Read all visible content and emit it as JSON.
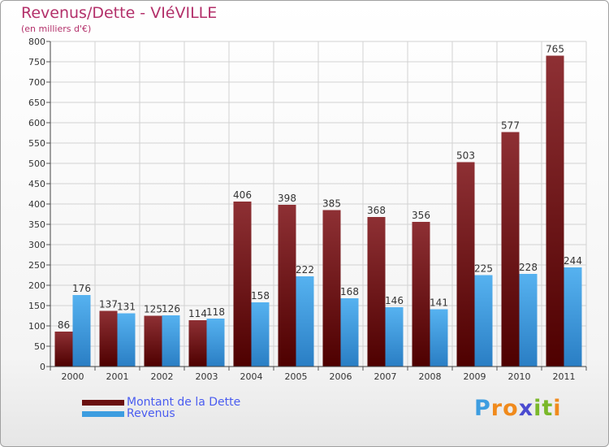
{
  "chart_data": {
    "type": "bar",
    "title": "Revenus/Dette - VIéVILLE",
    "subtitle": "(en milliers d'€)",
    "categories": [
      "2000",
      "2001",
      "2002",
      "2003",
      "2004",
      "2005",
      "2006",
      "2007",
      "2008",
      "2009",
      "2010",
      "2011"
    ],
    "series": [
      {
        "name": "Montant de la Dette",
        "color": "#7a1010",
        "values": [
          86,
          137,
          125,
          114,
          406,
          398,
          385,
          368,
          356,
          503,
          577,
          765
        ]
      },
      {
        "name": "Revenus",
        "color": "#3d9de0",
        "values": [
          176,
          131,
          126,
          118,
          158,
          222,
          168,
          146,
          141,
          225,
          228,
          244
        ]
      }
    ],
    "ylim": [
      0,
      800
    ],
    "yticks": [
      0,
      50,
      100,
      150,
      200,
      250,
      300,
      350,
      400,
      450,
      500,
      550,
      600,
      650,
      700,
      750,
      800
    ],
    "grid": true,
    "xlabel": "",
    "ylabel": "",
    "legend_position": "bottom-left"
  },
  "legend": {
    "items": [
      {
        "label": "Montant de la Dette",
        "color": "#6a0f0f"
      },
      {
        "label": "Revenus",
        "color": "#3d9de0"
      }
    ]
  },
  "logo": {
    "letters": [
      {
        "char": "P",
        "color": "#3d9de0"
      },
      {
        "char": "r",
        "color": "#f08a1c"
      },
      {
        "char": "o",
        "color": "#f08a1c"
      },
      {
        "char": "x",
        "color": "#4a4ad0"
      },
      {
        "char": "i",
        "color": "#7ab82a"
      },
      {
        "char": "t",
        "color": "#7ab82a"
      },
      {
        "char": "i",
        "color": "#f08a1c"
      }
    ]
  }
}
